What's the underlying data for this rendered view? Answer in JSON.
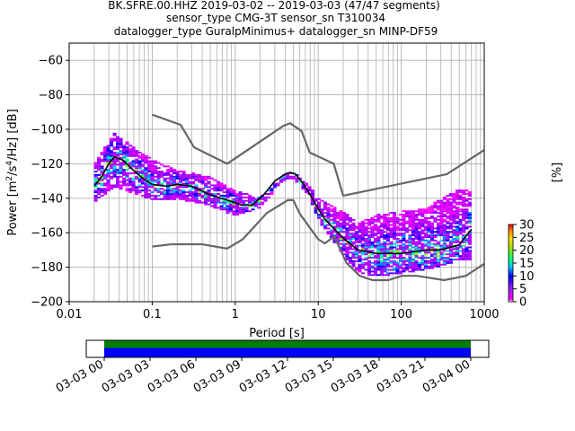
{
  "title": {
    "line1": "BK.SFRE.00.HHZ   2019-03-02 -- 2019-03-03  (47/47 segments)",
    "line2": "sensor_type CMG-3T sensor_sn T310034",
    "line3": "datalogger_type GuralpMinimus+ datalogger_sn MINP-DF59"
  },
  "colors": {
    "noise_models": "#666666",
    "mode_line": "#000000",
    "timeline_green": "#008000",
    "timeline_blue": "#0000ff"
  },
  "chart_data": {
    "type": "heatmap",
    "title": "BK.SFRE.00.HHZ   2019-03-02 -- 2019-03-03  (47/47 segments)",
    "xlabel": "Period [s]",
    "ylabel": "Power [m2/s4/Hz] [dB]",
    "x_scale": "log",
    "xlim": [
      0.01,
      1000
    ],
    "ylim": [
      -200,
      -50
    ],
    "x_ticks": [
      "0.01",
      "0.1",
      "1",
      "10",
      "100",
      "1000"
    ],
    "y_ticks": [
      "−60",
      "−80",
      "−100",
      "−120",
      "−140",
      "−160",
      "−180",
      "−200"
    ],
    "grid": true,
    "colorbar": {
      "label": "[%]",
      "ticks": [
        "0",
        "5",
        "10",
        "15",
        "20",
        "25",
        "30"
      ],
      "range": [
        0,
        30
      ]
    },
    "series": [
      {
        "name": "",
        "role": "high noise model",
        "x": [
          0.1,
          0.22,
          0.32,
          0.8,
          3.8,
          4.6,
          6.3,
          7.9,
          15.4,
          20,
          354.8,
          1000
        ],
        "y": [
          -91.5,
          -97.4,
          -110.5,
          -120,
          -98,
          -96.5,
          -101,
          -113.5,
          -120,
          -138.5,
          -126,
          -112
        ]
      },
      {
        "name": "",
        "role": "low noise model",
        "x": [
          0.1,
          0.17,
          0.4,
          0.8,
          1.24,
          2.4,
          4.3,
          5,
          6,
          10,
          12,
          15.6,
          21.9,
          31.6,
          45,
          70,
          101,
          154,
          328,
          600,
          1000
        ],
        "y": [
          -168,
          -166.7,
          -166.7,
          -169.2,
          -163.7,
          -148.6,
          -141.1,
          -141.1,
          -149,
          -163.8,
          -166.2,
          -162.1,
          -177.5,
          -185,
          -187.5,
          -187.5,
          -185,
          -185,
          -187.5,
          -185,
          -178
        ]
      },
      {
        "name": "",
        "role": "mode",
        "x": [
          0.02,
          0.025,
          0.03,
          0.035,
          0.045,
          0.06,
          0.08,
          0.1,
          0.15,
          0.2,
          0.3,
          0.5,
          0.8,
          1.2,
          1.6,
          2.2,
          3,
          4,
          4.6,
          5.3,
          6.5,
          8,
          10,
          12,
          15,
          20,
          30,
          50,
          100,
          200,
          300,
          500,
          700
        ],
        "y": [
          -133,
          -127,
          -120,
          -116,
          -118,
          -124,
          -129,
          -132,
          -133,
          -132,
          -133,
          -138,
          -141,
          -144,
          -144,
          -138,
          -130,
          -126,
          -125,
          -126,
          -131,
          -138,
          -146,
          -152,
          -157,
          -163,
          -170,
          -172,
          -172,
          -170,
          -170,
          -167,
          -158
        ]
      },
      {
        "name": "",
        "role": "psd density",
        "x": [
          0.02,
          0.03,
          0.035,
          0.05,
          0.1,
          0.2,
          0.5,
          1,
          2,
          4,
          5,
          8,
          10,
          20,
          30,
          50,
          100,
          200,
          500,
          700
        ],
        "y_min": [
          -142,
          -136,
          -133,
          -136,
          -140,
          -140,
          -144,
          -150,
          -145,
          -129,
          -128,
          -140,
          -152,
          -172,
          -183,
          -185,
          -183,
          -181,
          -176,
          -175
        ],
        "y_max": [
          -120,
          -108,
          -102,
          -108,
          -118,
          -124,
          -128,
          -136,
          -140,
          -126,
          -125,
          -134,
          -140,
          -148,
          -155,
          -150,
          -148,
          -146,
          -135,
          -135
        ]
      }
    ]
  },
  "timeline": {
    "tick_labels": [
      "03-03 00",
      "03-03 03",
      "03-03 06",
      "03-03 09",
      "03-03 12",
      "03-03 15",
      "03-03 18",
      "03-03 21",
      "03-04 00"
    ],
    "coverage": [
      {
        "start": "03-03 00",
        "end": "03-04 00"
      }
    ]
  }
}
